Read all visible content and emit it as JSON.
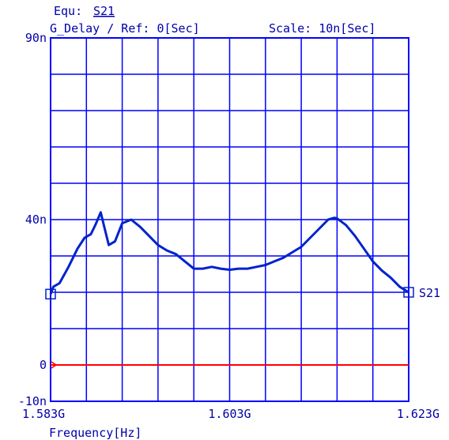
{
  "header": {
    "equ_label": "Equ:",
    "equ_value": "S21",
    "measurement": "G_Delay / Ref: 0[Sec]",
    "scale": "Scale: 10n[Sec]"
  },
  "colors": {
    "grid": "#0000ff",
    "trace": "#0022cc",
    "reference": "#ff0000",
    "text": "#0000aa"
  },
  "chart_data": {
    "type": "line",
    "xlabel": "Frequency[Hz]",
    "ylabel": "",
    "xlim": [
      1.583,
      1.623
    ],
    "ylim": [
      -10,
      90
    ],
    "y_unit": "ns",
    "x_tick_labels": [
      {
        "value": 1.583,
        "label": "1.583G"
      },
      {
        "value": 1.603,
        "label": "1.603G"
      },
      {
        "value": 1.623,
        "label": "1.623G"
      }
    ],
    "y_tick_labels": [
      {
        "value": 90,
        "label": "90n"
      },
      {
        "value": 40,
        "label": "40n"
      },
      {
        "value": 0,
        "label": "0"
      },
      {
        "value": -10,
        "label": "-10n"
      }
    ],
    "grid": {
      "x_divisions": 10,
      "y_divisions": 10
    },
    "reference_level": 0,
    "series": [
      {
        "name": "S21",
        "x": [
          1.583,
          1.5833,
          1.584,
          1.585,
          1.586,
          1.5868,
          1.5875,
          1.588,
          1.5886,
          1.589,
          1.5895,
          1.5902,
          1.591,
          1.592,
          1.593,
          1.594,
          1.595,
          1.596,
          1.597,
          1.598,
          1.599,
          1.6,
          1.601,
          1.602,
          1.603,
          1.604,
          1.605,
          1.606,
          1.607,
          1.608,
          1.609,
          1.61,
          1.611,
          1.612,
          1.613,
          1.614,
          1.6147,
          1.615,
          1.616,
          1.617,
          1.618,
          1.619,
          1.62,
          1.621,
          1.622,
          1.623
        ],
        "y": [
          19.5,
          21.5,
          22.5,
          27,
          32,
          35,
          36,
          38.5,
          42,
          38,
          33,
          34,
          39,
          40,
          38,
          35.5,
          33,
          31.5,
          30.5,
          28.5,
          26.5,
          26.5,
          27,
          26.5,
          26.2,
          26.5,
          26.5,
          27,
          27.5,
          28.5,
          29.5,
          31,
          32.5,
          35,
          37.5,
          40,
          40.5,
          40.3,
          38.5,
          35.5,
          32,
          28.5,
          26,
          24,
          21.5,
          20
        ]
      }
    ],
    "annotations": [
      "S21"
    ]
  }
}
